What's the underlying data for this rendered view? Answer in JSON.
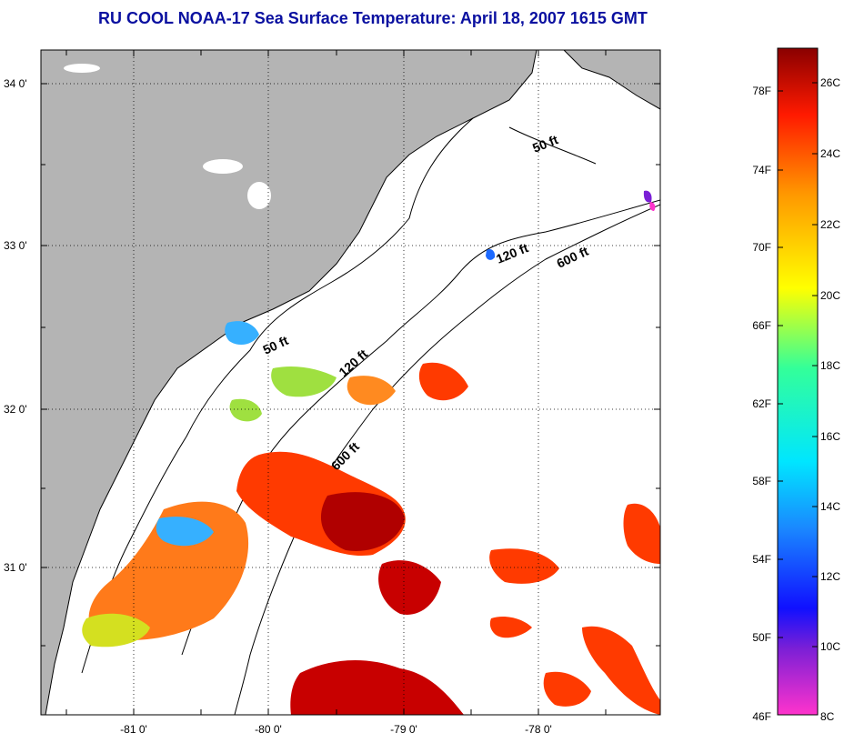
{
  "title": "RU COOL  NOAA-17  Sea Surface Temperature:  April 18, 2007 1615 GMT",
  "map": {
    "lat_labels": [
      "34 0'",
      "33 0'",
      "32 0'",
      "31 0'"
    ],
    "lon_labels": [
      "-81 0'",
      "-80 0'",
      "-79 0'",
      "-78 0'"
    ],
    "isobath_labels": [
      "50 ft",
      "120 ft",
      "600 ft",
      "50 ft",
      "120 ft",
      "600 ft"
    ],
    "colors": {
      "land": "#b4b4b4",
      "ocean": "#ffffff",
      "coast": "#000000"
    }
  },
  "colorbar": {
    "fahrenheit_labels": [
      "78F",
      "74F",
      "70F",
      "66F",
      "62F",
      "58F",
      "54F",
      "50F",
      "46F"
    ],
    "celsius_labels": [
      "26C",
      "24C",
      "22C",
      "20C",
      "18C",
      "16C",
      "14C",
      "12C",
      "10C",
      "8C"
    ],
    "colors": [
      "#ff33cc",
      "#7a1fd6",
      "#1010ff",
      "#1a88ff",
      "#00e6ff",
      "#33ff99",
      "#ffff00",
      "#ff9900",
      "#ff1a00",
      "#8a0000"
    ]
  }
}
